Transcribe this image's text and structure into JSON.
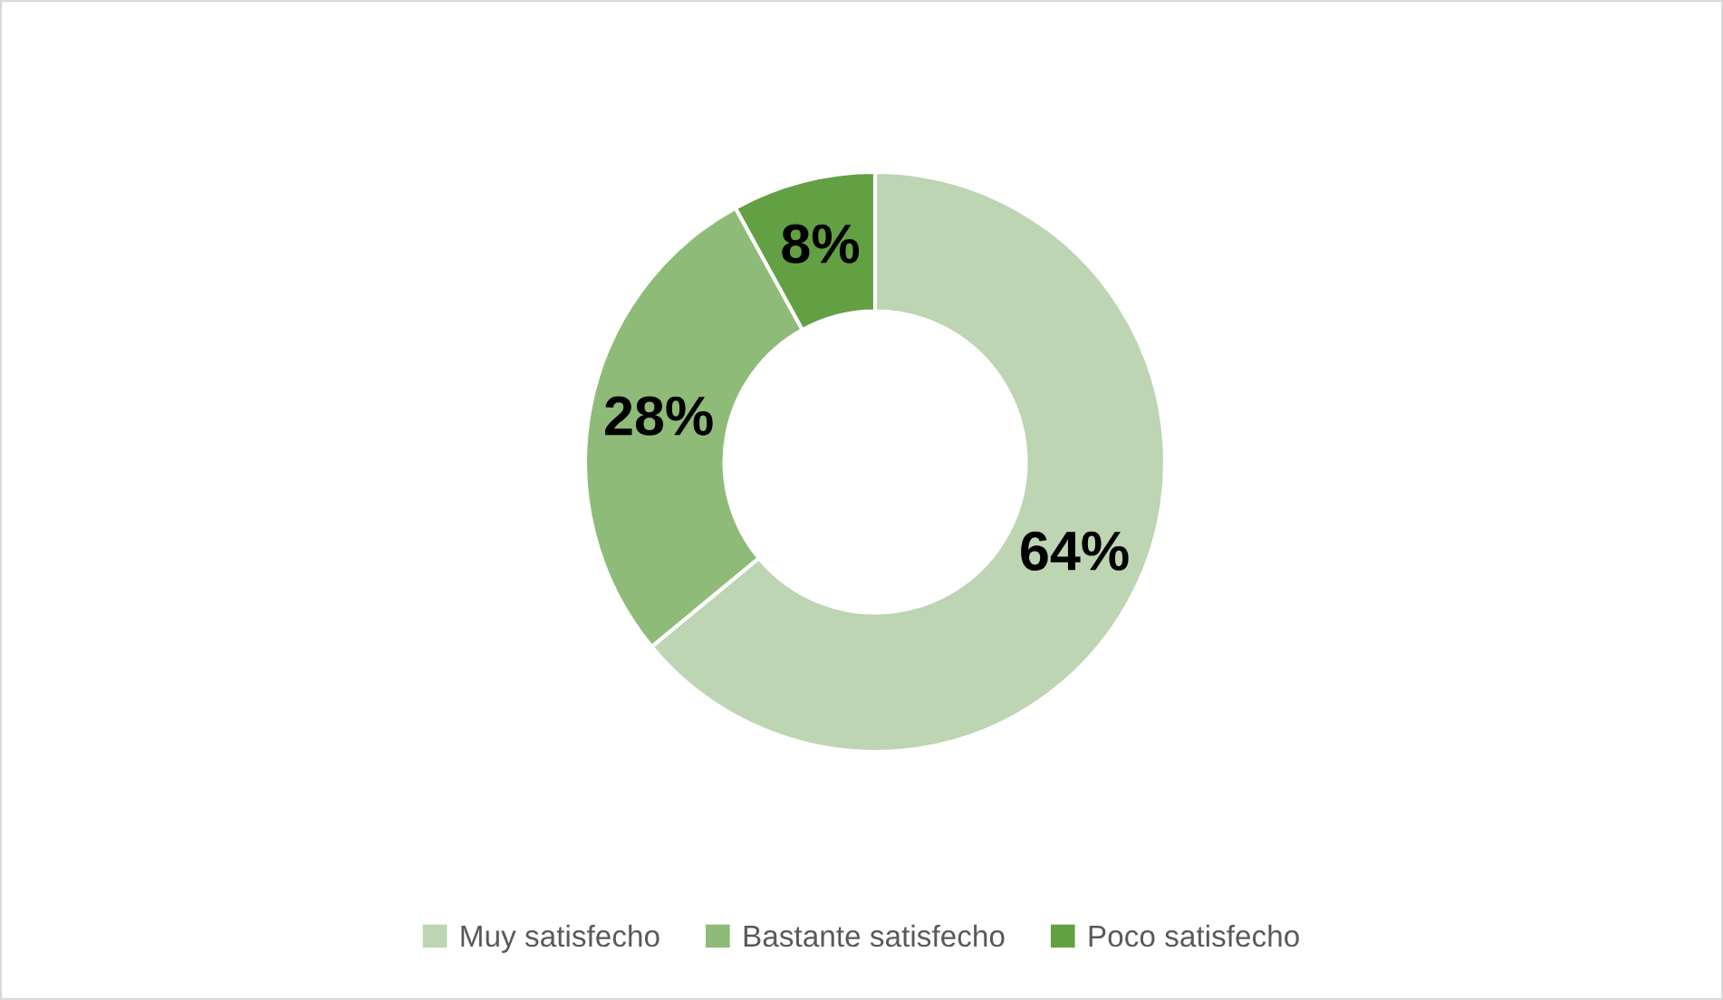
{
  "chart_data": {
    "type": "donut",
    "categories": [
      "Muy satisfecho",
      "Bastante satisfecho",
      "Poco satisfecho"
    ],
    "values": [
      64,
      28,
      8
    ],
    "colors": [
      "#bdd5b2",
      "#8fbb78",
      "#62a043"
    ],
    "value_labels": [
      "64%",
      "28%",
      "8%"
    ],
    "legend": "bottom"
  }
}
